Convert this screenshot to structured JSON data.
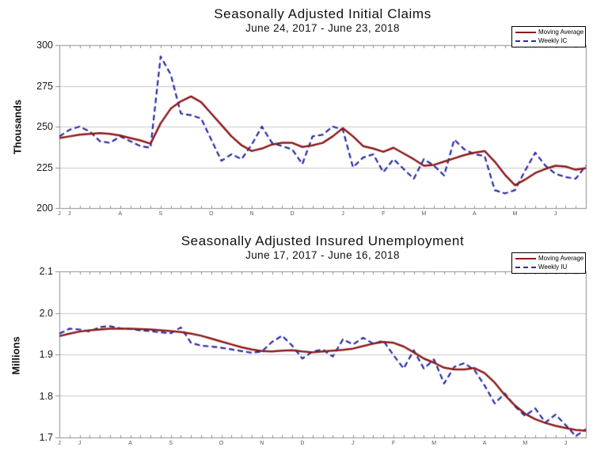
{
  "colors": {
    "moving_average": "#8B1C1C",
    "weekly": "#2B2BA8",
    "grid": "#c9c9c9",
    "axis": "#8f8f8f",
    "tick": "#8f8f8f"
  },
  "chart_data": [
    {
      "type": "line",
      "title": "Seasonally Adjusted Initial Claims",
      "subtitle": "June 24, 2017 - June 23, 2018",
      "ylabel": "Thousands",
      "ylim": [
        200,
        300
      ],
      "yticks": [
        200,
        225,
        250,
        275,
        300
      ],
      "grid": true,
      "legend_position": "top-right",
      "x_unit": "week",
      "n_points": 53,
      "month_ticks": [
        {
          "label": "J",
          "week": 0
        },
        {
          "label": "J",
          "week": 1
        },
        {
          "label": "A",
          "week": 6
        },
        {
          "label": "S",
          "week": 10
        },
        {
          "label": "O",
          "week": 15
        },
        {
          "label": "N",
          "week": 19
        },
        {
          "label": "D",
          "week": 23
        },
        {
          "label": "J",
          "week": 28
        },
        {
          "label": "F",
          "week": 32
        },
        {
          "label": "M",
          "week": 36
        },
        {
          "label": "A",
          "week": 41
        },
        {
          "label": "M",
          "week": 45
        },
        {
          "label": "J",
          "week": 49
        }
      ],
      "series": [
        {
          "name": "Moving Average",
          "style": "solid",
          "color": "#8B1C1C",
          "values": [
            243,
            244,
            245,
            245.5,
            246,
            245.5,
            244.5,
            243,
            241.5,
            239.5,
            252,
            261,
            265.5,
            268.5,
            265,
            258,
            251,
            244,
            238.5,
            235,
            236.5,
            239,
            240,
            240,
            237.5,
            238.5,
            240,
            244,
            249,
            244,
            238,
            236.5,
            234.5,
            237,
            233.5,
            230,
            226,
            226.5,
            228.5,
            230.5,
            232.5,
            234,
            235,
            228.5,
            220.5,
            214,
            217.5,
            221.5,
            224,
            226,
            225.5,
            223.5,
            224.5
          ]
        },
        {
          "name": "Weekly IC",
          "style": "dashed",
          "color": "#2B2BA8",
          "values": [
            244,
            248,
            250,
            247,
            241,
            240,
            244,
            241,
            238,
            237,
            293,
            282,
            258,
            257,
            255,
            242,
            229,
            233,
            230,
            239,
            250,
            240,
            238,
            236,
            227,
            244,
            245,
            250,
            248,
            225,
            231,
            233,
            222,
            230,
            224,
            218,
            230,
            226,
            220,
            242,
            236,
            233,
            232,
            211,
            209,
            211,
            223,
            234,
            226,
            221,
            219,
            218,
            226
          ]
        }
      ]
    },
    {
      "type": "line",
      "title": "Seasonally Adjusted Insured Unemployment",
      "subtitle": "June 17, 2017 - June 16, 2018",
      "ylabel": "Millions",
      "ylim": [
        1.7,
        2.1
      ],
      "yticks": [
        1.7,
        1.8,
        1.9,
        2.0,
        2.1
      ],
      "grid": true,
      "legend_position": "top-right",
      "x_unit": "week",
      "n_points": 53,
      "month_ticks": [
        {
          "label": "J",
          "week": 0
        },
        {
          "label": "J",
          "week": 2
        },
        {
          "label": "A",
          "week": 7
        },
        {
          "label": "S",
          "week": 11
        },
        {
          "label": "O",
          "week": 16
        },
        {
          "label": "N",
          "week": 20
        },
        {
          "label": "D",
          "week": 24
        },
        {
          "label": "J",
          "week": 29
        },
        {
          "label": "F",
          "week": 33
        },
        {
          "label": "M",
          "week": 37
        },
        {
          "label": "A",
          "week": 42
        },
        {
          "label": "M",
          "week": 46
        },
        {
          "label": "J",
          "week": 50
        }
      ],
      "series": [
        {
          "name": "Moving Average",
          "style": "solid",
          "color": "#8B1C1C",
          "values": [
            1.944,
            1.95,
            1.955,
            1.958,
            1.96,
            1.962,
            1.962,
            1.962,
            1.961,
            1.96,
            1.958,
            1.956,
            1.954,
            1.95,
            1.945,
            1.938,
            1.931,
            1.924,
            1.917,
            1.912,
            1.908,
            1.907,
            1.909,
            1.91,
            1.907,
            1.905,
            1.907,
            1.909,
            1.911,
            1.914,
            1.92,
            1.926,
            1.93,
            1.928,
            1.919,
            1.905,
            1.89,
            1.88,
            1.868,
            1.864,
            1.864,
            1.867,
            1.855,
            1.832,
            1.802,
            1.777,
            1.757,
            1.744,
            1.735,
            1.728,
            1.723,
            1.718,
            1.716
          ]
        },
        {
          "name": "Weekly IU",
          "style": "dashed",
          "color": "#2B2BA8",
          "values": [
            1.95,
            1.962,
            1.96,
            1.955,
            1.966,
            1.968,
            1.963,
            1.961,
            1.958,
            1.956,
            1.953,
            1.951,
            1.965,
            1.928,
            1.921,
            1.919,
            1.916,
            1.912,
            1.908,
            1.904,
            1.907,
            1.93,
            1.945,
            1.921,
            1.89,
            1.907,
            1.912,
            1.895,
            1.936,
            1.924,
            1.94,
            1.926,
            1.933,
            1.898,
            1.866,
            1.91,
            1.866,
            1.888,
            1.83,
            1.87,
            1.879,
            1.862,
            1.825,
            1.782,
            1.806,
            1.775,
            1.752,
            1.77,
            1.736,
            1.755,
            1.73,
            1.703,
            1.72
          ]
        }
      ]
    }
  ]
}
